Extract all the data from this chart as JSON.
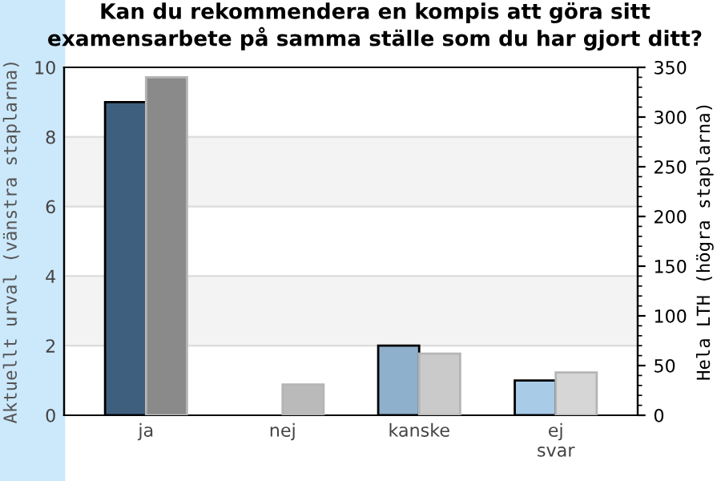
{
  "chart_data": {
    "type": "bar",
    "title": "Kan du rekommendera en kompis att göra sitt examensarbete på samma ställe som du har gjort ditt?",
    "categories": [
      "ja",
      "nej",
      "kanske",
      "ej\nsvar"
    ],
    "ylabel": "Aktuellt urval (vänstra staplarna)",
    "y2label": "Hela LTH (högra staplarna)",
    "series": [
      {
        "colors": [
          "#3f5f7f",
          "#3f5f7f",
          "#8fb0cc",
          "#a8cbe8"
        ],
        "values": [
          9,
          0,
          2,
          1
        ]
      },
      {
        "axis": "y2",
        "colors": [
          "#8a8a8a",
          "#bababa",
          "#cacaca",
          "#d6d6d6"
        ],
        "values": [
          340,
          31,
          62,
          43
        ]
      }
    ],
    "ylim": [
      0,
      10
    ],
    "yticks": [
      0,
      2,
      4,
      6,
      8,
      10
    ],
    "y2lim": [
      0,
      350
    ],
    "y2ticks": [
      0,
      50,
      100,
      150,
      200,
      250,
      300,
      350
    ],
    "grid": "y"
  }
}
